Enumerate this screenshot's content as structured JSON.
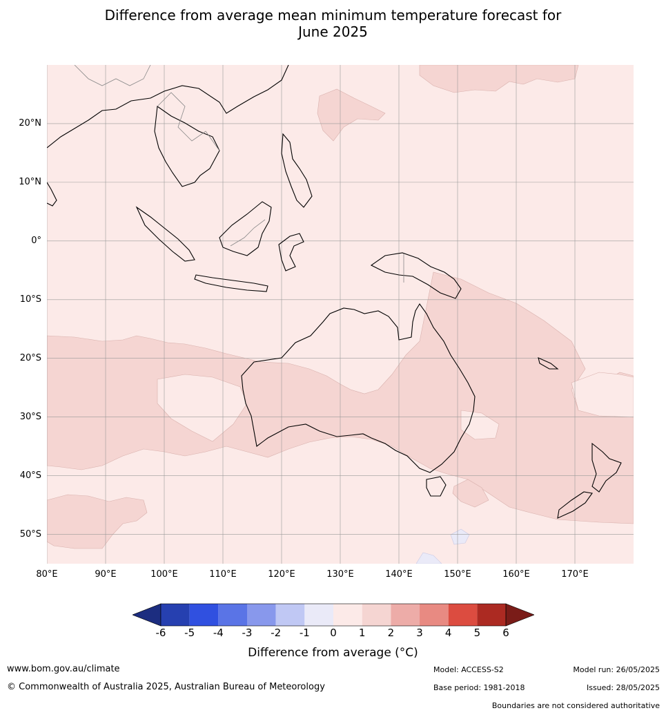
{
  "title_line1": "Difference from average mean minimum temperature forecast for",
  "title_line2": "June 2025",
  "map": {
    "lon_range": [
      80,
      180
    ],
    "lat_range": [
      -55,
      30
    ],
    "lat_labels": [
      "20°N",
      "10°N",
      "0°",
      "10°S",
      "20°S",
      "30°S",
      "40°S",
      "50°S"
    ],
    "lat_values": [
      20,
      10,
      0,
      -10,
      -20,
      -30,
      -40,
      -50
    ],
    "lon_labels": [
      "80°E",
      "90°E",
      "100°E",
      "110°E",
      "120°E",
      "130°E",
      "140°E",
      "150°E",
      "160°E",
      "170°E"
    ],
    "lon_values": [
      80,
      90,
      100,
      110,
      120,
      130,
      140,
      150,
      160,
      170
    ],
    "colors": {
      "background_0_1": "#fceae8",
      "anomaly_1_2": "#f5d5d2",
      "anomaly_neg_1_0": "#eaeaf8",
      "grid": "#999999",
      "coast": "#000000",
      "border": "#888888"
    }
  },
  "colorbar": {
    "ticks": [
      "-6",
      "-5",
      "-4",
      "-3",
      "-2",
      "-1",
      "0",
      "1",
      "2",
      "3",
      "4",
      "5",
      "6"
    ],
    "under_color": "#1c2d80",
    "over_color": "#7a1c18",
    "colors": [
      "#2640b0",
      "#3050e0",
      "#5a74e6",
      "#8898ec",
      "#c0c8f4",
      "#eaeaf8",
      "#fceae8",
      "#f5d5d2",
      "#edaca8",
      "#e88a82",
      "#dc4c40",
      "#ac2a22"
    ],
    "label": "Difference from average (°C)"
  },
  "footer": {
    "website": "www.bom.gov.au/climate",
    "copyright": "© Commonwealth of Australia 2025, Australian Bureau of Meteorology",
    "model": "Model: ACCESS-S2",
    "base_period": "Base period: 1981-2018",
    "model_run": "Model run: 26/05/2025",
    "issued": "Issued: 28/05/2025",
    "disclaimer": "Boundaries are not considered authoritative"
  }
}
